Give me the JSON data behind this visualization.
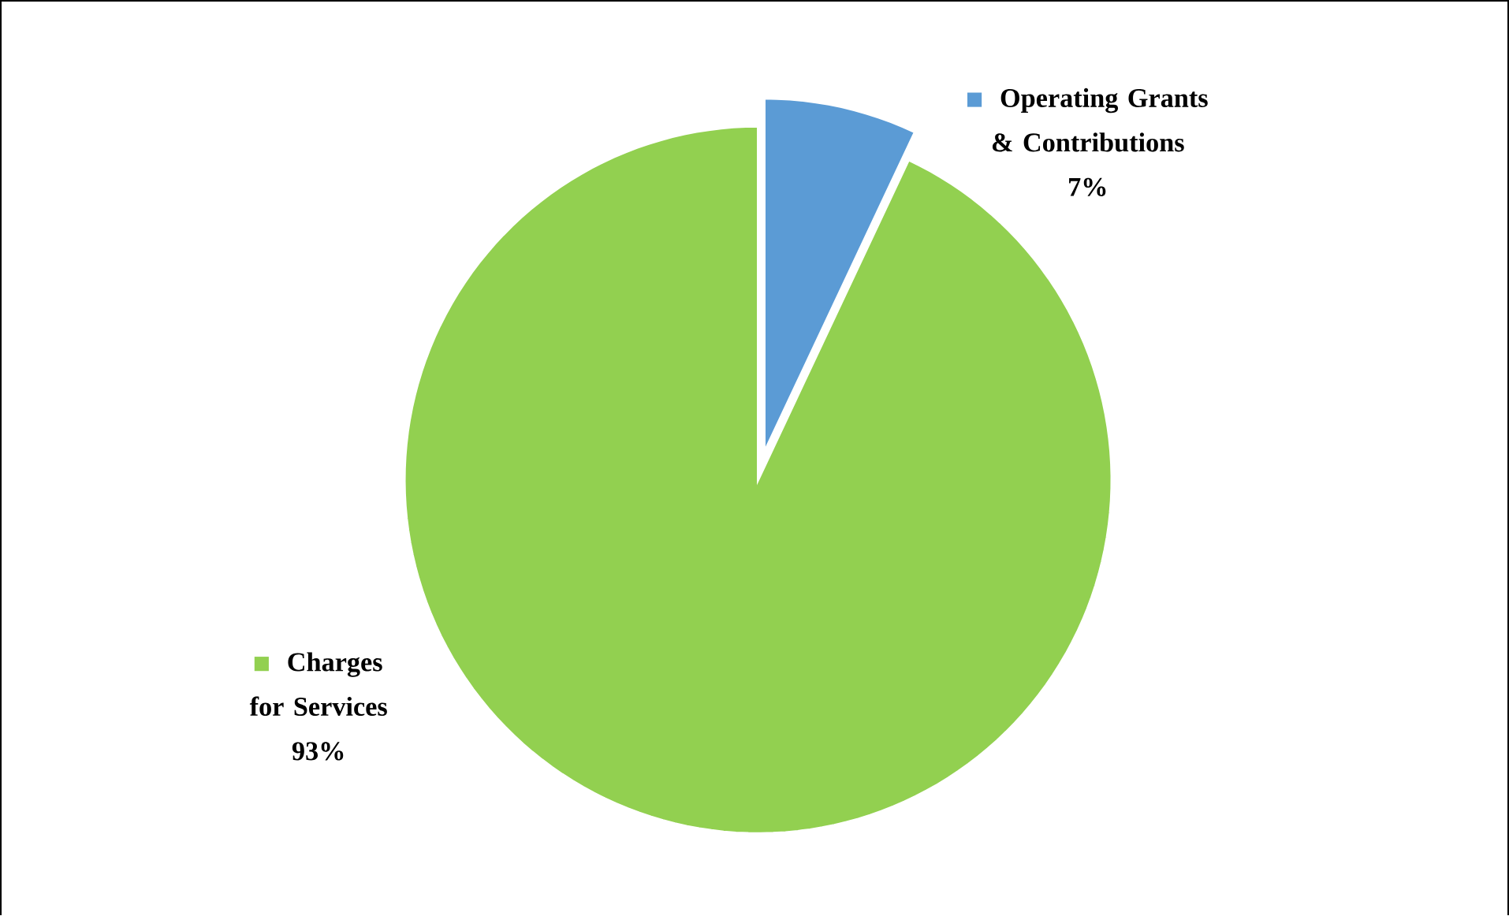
{
  "chart_data": {
    "type": "pie",
    "categories": [
      "Operating Grants & Contributions",
      "Charges for Services"
    ],
    "values": [
      7,
      93
    ],
    "colors": [
      "#5b9bd5",
      "#92d050"
    ],
    "value_labels": [
      "7%",
      "93%"
    ],
    "legend": "right"
  }
}
